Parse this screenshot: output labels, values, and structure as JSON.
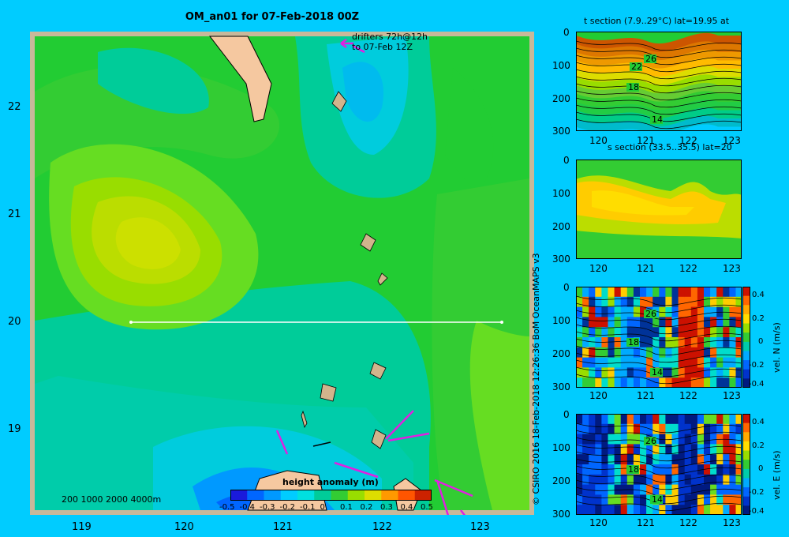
{
  "title": "OM_an01 for 07-Feb-2018 00Z",
  "map": {
    "x_ticks": [
      "119",
      "120",
      "121",
      "122",
      "123"
    ],
    "y_ticks": [
      "22",
      "21",
      "20",
      "19"
    ],
    "depth_contours": "200  1000  2000  4000m",
    "drifters": [
      "drifters 72h@12h",
      "to 07-Feb 12Z"
    ],
    "section_line": {
      "lon_start": 119.5,
      "lon_end": 123.2,
      "lat": 20
    },
    "colorbar": {
      "title": "height anomaly (m)",
      "labels": [
        "-0.5",
        "-0.4",
        "-0.3",
        "-0.2",
        "-0.1",
        "0",
        "0.1",
        "0.2",
        "0.3",
        "0.4",
        "0.5"
      ],
      "colors": [
        "#1a1adb",
        "#0066ff",
        "#0099ff",
        "#00ccff",
        "#00e0e0",
        "#00cc99",
        "#33cc33",
        "#99dd00",
        "#dddd00",
        "#ff9900",
        "#ff5500",
        "#cc2200"
      ]
    }
  },
  "sections": [
    {
      "title": "t section (7.9..29°C) lat=19.95 at",
      "y_ticks": [
        "0",
        "100",
        "200",
        "300"
      ],
      "x_ticks": [
        "120",
        "121",
        "122",
        "123"
      ],
      "contour_labels": [
        "26",
        "22",
        "18",
        "14"
      ]
    },
    {
      "title": "s section (33.5..35.5) lat=20",
      "y_ticks": [
        "0",
        "100",
        "200",
        "300"
      ],
      "x_ticks": [
        "120",
        "121",
        "122",
        "123"
      ]
    },
    {
      "title": "",
      "y_ticks": [
        "0",
        "100",
        "200",
        "300"
      ],
      "x_ticks": [
        "120",
        "121",
        "122",
        "123"
      ],
      "contour_labels": [
        "26",
        "18",
        "14"
      ],
      "colorbar_label": "vel. N (m/s)",
      "colorbar_ticks": [
        "0.4",
        "0.2",
        "0",
        "-0.2",
        "-0.4"
      ]
    },
    {
      "title": "",
      "y_ticks": [
        "0",
        "100",
        "200",
        "300"
      ],
      "x_ticks": [
        "120",
        "121",
        "122",
        "123"
      ],
      "contour_labels": [
        "26",
        "18",
        "14"
      ],
      "colorbar_label": "vel. E (m/s)",
      "colorbar_ticks": [
        "0.4",
        "0.2",
        "0",
        "-0.2",
        "-0.4"
      ]
    }
  ],
  "credit": "© CSIRO 2016   18-Feb-2018 12:26:36 BoM OceanMAPS v3",
  "colors": {
    "background": "#00ccff",
    "frame": "#c8b89a",
    "land": "#f5c8a0",
    "drifter": "#e020e0"
  }
}
